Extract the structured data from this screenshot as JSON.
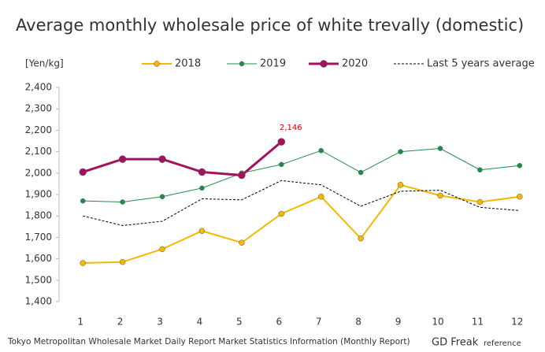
{
  "chart_data": {
    "type": "line",
    "title": "Average monthly wholesale price of white trevally (domestic)",
    "y_axis_label": "[Yen/kg]",
    "source": "Tokyo Metropolitan Wholesale Market Daily Report Market Statistics Information (Monthly Report)",
    "brand": "GD Freak",
    "brand_note": "reference",
    "categories": [
      "1",
      "2",
      "3",
      "4",
      "5",
      "6",
      "7",
      "8",
      "9",
      "10",
      "11",
      "12"
    ],
    "series": [
      {
        "name": "2018",
        "color": "#f5b800",
        "width": 2,
        "marker_size": 3.5,
        "line_style": "solid",
        "values": [
          1580,
          1585,
          1645,
          1730,
          1675,
          1810,
          1890,
          1695,
          1945,
          1895,
          1865,
          1890
        ]
      },
      {
        "name": "2019",
        "color": "#1e8c4c",
        "width": 1,
        "marker_size": 3,
        "line_style": "solid",
        "values": [
          1870,
          1865,
          1890,
          1930,
          2000,
          2040,
          2105,
          2003,
          2100,
          2115,
          2015,
          2035
        ]
      },
      {
        "name": "2020",
        "color": "#a3125d",
        "width": 3,
        "marker_size": 4.5,
        "line_style": "solid",
        "values": [
          2005,
          2065,
          2065,
          2005,
          1990,
          2146,
          null,
          null,
          null,
          null,
          null,
          null
        ],
        "value_labels": [
          null,
          null,
          null,
          null,
          null,
          "2,146",
          null,
          null,
          null,
          null,
          null,
          null
        ]
      },
      {
        "name": "Last 5 years average",
        "color": "#000000",
        "width": 1,
        "marker_size": 0,
        "line_style": "dashed",
        "values": [
          1800,
          1755,
          1775,
          1880,
          1875,
          1965,
          1945,
          1845,
          1915,
          1920,
          1840,
          1825
        ]
      }
    ],
    "ylim": [
      1400,
      2400
    ],
    "yticks": [
      {
        "value": 1400,
        "label": "1,400"
      },
      {
        "value": 1500,
        "label": "1,500"
      },
      {
        "value": 1600,
        "label": "1,600"
      },
      {
        "value": 1700,
        "label": "1,700"
      },
      {
        "value": 1800,
        "label": "1,800"
      },
      {
        "value": 1900,
        "label": "1,900"
      },
      {
        "value": 2000,
        "label": "2,000"
      },
      {
        "value": 2100,
        "label": "2,100"
      },
      {
        "value": 2200,
        "label": "2,200"
      },
      {
        "value": 2300,
        "label": "2,300"
      },
      {
        "value": 2400,
        "label": "2,400"
      }
    ],
    "grid": false
  }
}
